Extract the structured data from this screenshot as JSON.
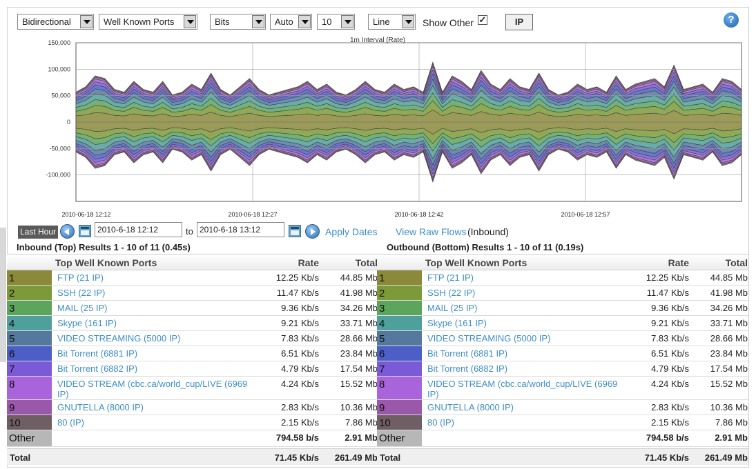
{
  "toolbar": {
    "direction": "Bidirectional",
    "ports": "Well Known Ports",
    "unit": "Bits",
    "scale": "Auto",
    "count": "10",
    "style": "Line",
    "show_other_label": "Show Other",
    "show_other_checked": "✓",
    "ip_button": "IP",
    "help": "?"
  },
  "chart_data": {
    "type": "area",
    "title": "1m Interval (Rate)",
    "y_ticks": [
      "150,000",
      "100,000",
      "50,000",
      "0",
      "-50,000",
      "-100,000"
    ],
    "ylim": [
      -150000,
      150000
    ],
    "x_ticks": [
      "2010-06-18 12:12",
      "2010-06-18 12:27",
      "2010-06-18 12:42",
      "2010-06-18 12:57"
    ],
    "grid": true,
    "stacked": true,
    "mirrored": true,
    "series_colors": [
      "#8a8a3a",
      "#7d9a3a",
      "#5ba55c",
      "#4f9f9c",
      "#55789e",
      "#4c5fc7",
      "#7a5ad6",
      "#a964dc",
      "#9a58aa",
      "#6f5e64"
    ],
    "weights": [
      0.21,
      0.16,
      0.13,
      0.13,
      0.11,
      0.09,
      0.07,
      0.06,
      0.04,
      0.03
    ],
    "totals": [
      55000,
      65000,
      85000,
      80000,
      60000,
      55000,
      75000,
      60000,
      55000,
      75000,
      50000,
      55000,
      70000,
      60000,
      90000,
      60000,
      50000,
      65000,
      80000,
      60000,
      50000,
      55000,
      60000,
      65000,
      75000,
      60000,
      70000,
      55000,
      50000,
      60000,
      75000,
      60000,
      55000,
      70000,
      60000,
      65000,
      55000,
      110000,
      55000,
      85000,
      75000,
      60000,
      95000,
      70000,
      60000,
      80000,
      65000,
      60000,
      90000,
      60000,
      50000,
      55000,
      70000,
      60000,
      65000,
      55000,
      85000,
      60000,
      70000,
      75000,
      80000,
      65000,
      105000,
      60000,
      65000,
      70000,
      55000,
      80000,
      75000,
      60000
    ]
  },
  "date_range": {
    "last_hour": "Last Hour",
    "from": "2010-6-18 12:12",
    "to_label": "to",
    "to": "2010-6-18 13:12",
    "apply": "Apply Dates",
    "raw_flows": "View Raw Flows",
    "raw_suffix": "(Inbound)"
  },
  "inbound": {
    "title": "Inbound (Top) Results 1 - 10 of 11 (0.45s)",
    "headers": {
      "name": "Top Well Known Ports",
      "rate": "Rate",
      "total": "Total"
    },
    "rows": [
      {
        "rank": "1",
        "name": "FTP (21 IP)",
        "rate": "12.25 Kb/s",
        "total": "44.85 Mb",
        "color": "#8a8a3a"
      },
      {
        "rank": "2",
        "name": "SSH (22 IP)",
        "rate": "11.47 Kb/s",
        "total": "41.98 Mb",
        "color": "#7d9a3a"
      },
      {
        "rank": "3",
        "name": "MAIL (25 IP)",
        "rate": "9.36 Kb/s",
        "total": "34.26 Mb",
        "color": "#5ba55c"
      },
      {
        "rank": "4",
        "name": "Skype (161 IP)",
        "rate": "9.21 Kb/s",
        "total": "33.71 Mb",
        "color": "#4f9f9c"
      },
      {
        "rank": "5",
        "name": "VIDEO STREAMING (5000 IP)",
        "rate": "7.83 Kb/s",
        "total": "28.66 Mb",
        "color": "#55789e"
      },
      {
        "rank": "6",
        "name": "Bit Torrent (6881 IP)",
        "rate": "6.51 Kb/s",
        "total": "23.84 Mb",
        "color": "#4c5fc7"
      },
      {
        "rank": "7",
        "name": "Bit Torrent (6882 IP)",
        "rate": "4.79 Kb/s",
        "total": "17.54 Mb",
        "color": "#7a5ad6"
      },
      {
        "rank": "8",
        "name": "VIDEO STREAM (cbc.ca/world_cup/LIVE (6969 IP)",
        "rate": "4.24 Kb/s",
        "total": "15.52 Mb",
        "color": "#a964dc"
      },
      {
        "rank": "9",
        "name": "GNUTELLA (8000 IP)",
        "rate": "2.83 Kb/s",
        "total": "10.36 Mb",
        "color": "#9a58aa"
      },
      {
        "rank": "10",
        "name": "80 (IP)",
        "rate": "2.15 Kb/s",
        "total": "7.86 Mb",
        "color": "#6f5e64"
      }
    ],
    "other": {
      "label": "Other",
      "rate": "794.58 b/s",
      "total": "2.91 Mb"
    },
    "total": {
      "label": "Total",
      "rate": "71.45 Kb/s",
      "total": "261.49 Mb"
    }
  },
  "outbound": {
    "title": "Outbound (Bottom) Results 1 - 10 of 11 (0.19s)",
    "headers": {
      "name": "Top Well Known Ports",
      "rate": "Rate",
      "total": "Total"
    },
    "rows": [
      {
        "rank": "1",
        "name": "FTP (21 IP)",
        "rate": "12.25 Kb/s",
        "total": "44.85 Mb",
        "color": "#8a8a3a"
      },
      {
        "rank": "2",
        "name": "SSH (22 IP)",
        "rate": "11.47 Kb/s",
        "total": "41.98 Mb",
        "color": "#7d9a3a"
      },
      {
        "rank": "3",
        "name": "MAIL (25 IP)",
        "rate": "9.36 Kb/s",
        "total": "34.26 Mb",
        "color": "#5ba55c"
      },
      {
        "rank": "4",
        "name": "Skype (161 IP)",
        "rate": "9.21 Kb/s",
        "total": "33.71 Mb",
        "color": "#4f9f9c"
      },
      {
        "rank": "5",
        "name": "VIDEO STREAMING (5000 IP)",
        "rate": "7.83 Kb/s",
        "total": "28.66 Mb",
        "color": "#55789e"
      },
      {
        "rank": "6",
        "name": "Bit Torrent (6881 IP)",
        "rate": "6.51 Kb/s",
        "total": "23.84 Mb",
        "color": "#4c5fc7"
      },
      {
        "rank": "7",
        "name": "Bit Torrent (6882 IP)",
        "rate": "4.79 Kb/s",
        "total": "17.54 Mb",
        "color": "#7a5ad6"
      },
      {
        "rank": "8",
        "name": "VIDEO STREAM (cbc.ca/world_cup/LIVE (6969 IP)",
        "rate": "4.24 Kb/s",
        "total": "15.52 Mb",
        "color": "#a964dc"
      },
      {
        "rank": "9",
        "name": "GNUTELLA (8000 IP)",
        "rate": "2.83 Kb/s",
        "total": "10.36 Mb",
        "color": "#9a58aa"
      },
      {
        "rank": "10",
        "name": "80 (IP)",
        "rate": "2.15 Kb/s",
        "total": "7.86 Mb",
        "color": "#6f5e64"
      }
    ],
    "other": {
      "label": "Other",
      "rate": "794.58 b/s",
      "total": "2.91 Mb"
    },
    "total": {
      "label": "Total",
      "rate": "71.45 Kb/s",
      "total": "261.49 Mb"
    }
  }
}
